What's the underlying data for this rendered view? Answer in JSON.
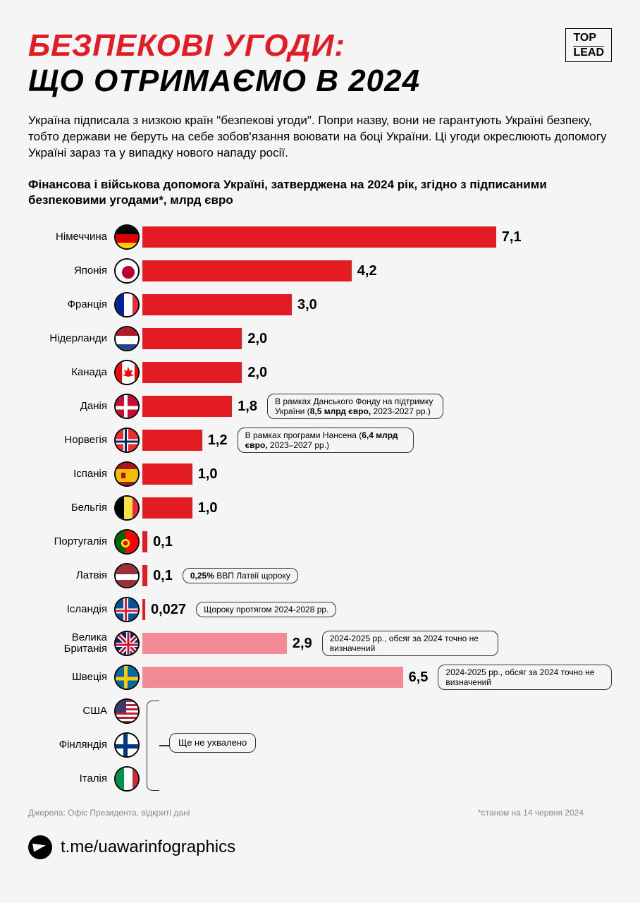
{
  "header": {
    "title_line1": "БЕЗПЕКОВІ УГОДИ:",
    "title_line1_color": "#e31b23",
    "title_line2": "ЩО ОТРИМАЄМО В 2024",
    "logo_line1": "TOP",
    "logo_line2": "LEAD"
  },
  "description": "Україна підписала з низкою країн \"безпекові угоди\". Попри назву, вони не гарантують Україні безпеку, тобто держави не беруть на себе зобов'язання воювати на боці України. Ці угоди окреслюють допомогу Україні зараз та у випадку нового нападу росії.",
  "subtitle": "Фінансова і військова допомога Україні, затверджена на 2024 рік, згідно з підписаними безпековими угодами*, млрд євро",
  "chart": {
    "type": "bar",
    "max_value": 7.5,
    "bar_colors": {
      "confirmed": "#e31b23",
      "uncertain": "#f28b96"
    },
    "countries": [
      {
        "name": "Німеччина",
        "value": "7,1",
        "num": 7.1,
        "bar": "confirmed",
        "flag": "de"
      },
      {
        "name": "Японія",
        "value": "4,2",
        "num": 4.2,
        "bar": "confirmed",
        "flag": "jp"
      },
      {
        "name": "Франція",
        "value": "3,0",
        "num": 3.0,
        "bar": "confirmed",
        "flag": "fr"
      },
      {
        "name": "Нідерланди",
        "value": "2,0",
        "num": 2.0,
        "bar": "confirmed",
        "flag": "nl"
      },
      {
        "name": "Канада",
        "value": "2,0",
        "num": 2.0,
        "bar": "confirmed",
        "flag": "ca"
      },
      {
        "name": "Данія",
        "value": "1,8",
        "num": 1.8,
        "bar": "confirmed",
        "flag": "dk",
        "note": "В рамках Данського Фонду на підтримку України (<b>8,5 млрд євро,</b> 2023-2027 рр.)"
      },
      {
        "name": "Норвегія",
        "value": "1,2",
        "num": 1.2,
        "bar": "confirmed",
        "flag": "no",
        "note": "В рамках програми Нансена (<b>6,4 млрд євро,</b> 2023–2027 рр.)"
      },
      {
        "name": "Іспанія",
        "value": "1,0",
        "num": 1.0,
        "bar": "confirmed",
        "flag": "es"
      },
      {
        "name": "Бельгія",
        "value": "1,0",
        "num": 1.0,
        "bar": "confirmed",
        "flag": "be"
      },
      {
        "name": "Португалія",
        "value": "0,1",
        "num": 0.1,
        "bar": "confirmed",
        "flag": "pt"
      },
      {
        "name": "Латвія",
        "value": "0,1",
        "num": 0.1,
        "bar": "confirmed",
        "flag": "lv",
        "note": "<b>0,25%</b> ВВП Латвії щороку"
      },
      {
        "name": "Ісландія",
        "value": "0,027",
        "num": 0.03,
        "bar": "confirmed",
        "flag": "is",
        "note": "Щороку протягом 2024-2028 рр."
      },
      {
        "name": "Велика Британія",
        "value": "2,9",
        "num": 2.9,
        "bar": "uncertain",
        "flag": "gb",
        "note": "2024-2025 рр., обсяг за 2024 точно не визначений"
      },
      {
        "name": "Швеція",
        "value": "6,5",
        "num": 6.5,
        "bar": "uncertain",
        "flag": "se",
        "note": "2024-2025 рр., обсяг за 2024 точно не визначений"
      },
      {
        "name": "США",
        "value": "",
        "num": 0,
        "bar": "none",
        "flag": "us"
      },
      {
        "name": "Фінляндія",
        "value": "",
        "num": 0,
        "bar": "none",
        "flag": "fi"
      },
      {
        "name": "Італія",
        "value": "",
        "num": 0,
        "bar": "none",
        "flag": "it"
      }
    ],
    "pending_note": "Ще не ухвалено"
  },
  "sources": "Джерела: Офіс Президента, відкриті дані",
  "footnote": "*станом на 14 червня 2024",
  "footer_link": "t.me/uawarinfographics"
}
